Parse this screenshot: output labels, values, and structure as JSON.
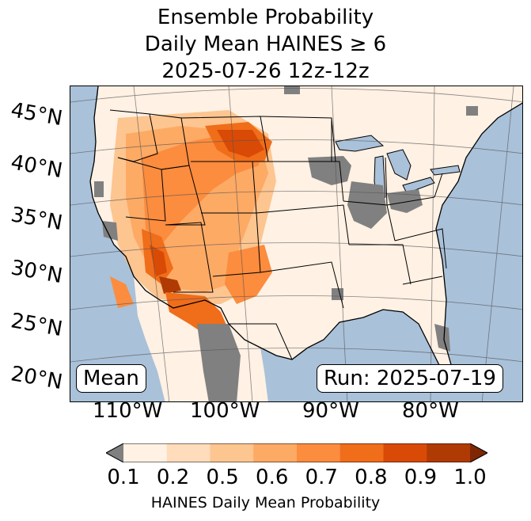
{
  "title": {
    "line1": "Ensemble Probability",
    "line2": "Daily Mean HAINES ≥ 6",
    "line3": "2025-07-26 12z-12z"
  },
  "lat_labels": [
    "45°N",
    "40°N",
    "35°N",
    "30°N",
    "25°N",
    "20°N"
  ],
  "lon_labels": [
    "110°W",
    "100°W",
    "90°W",
    "80°W"
  ],
  "mean_label": "Mean",
  "run_label": "Run: 2025-07-19",
  "colorbar": {
    "ticks": [
      "0.1",
      "0.2",
      "0.5",
      "0.6",
      "0.7",
      "0.8",
      "0.9",
      "1.0"
    ],
    "label": "HAINES Daily Mean Probability",
    "colors": [
      "#fff1e4",
      "#fedcbc",
      "#fdc590",
      "#fdaa65",
      "#fc8c3e",
      "#f06d1a",
      "#d94a06",
      "#b03a04"
    ],
    "under_color": "#808080",
    "over_color": "#7f2704"
  },
  "colors": {
    "ocean": "#a9c1d9",
    "land_low": "#fff1e4",
    "no_data": "#808080"
  }
}
